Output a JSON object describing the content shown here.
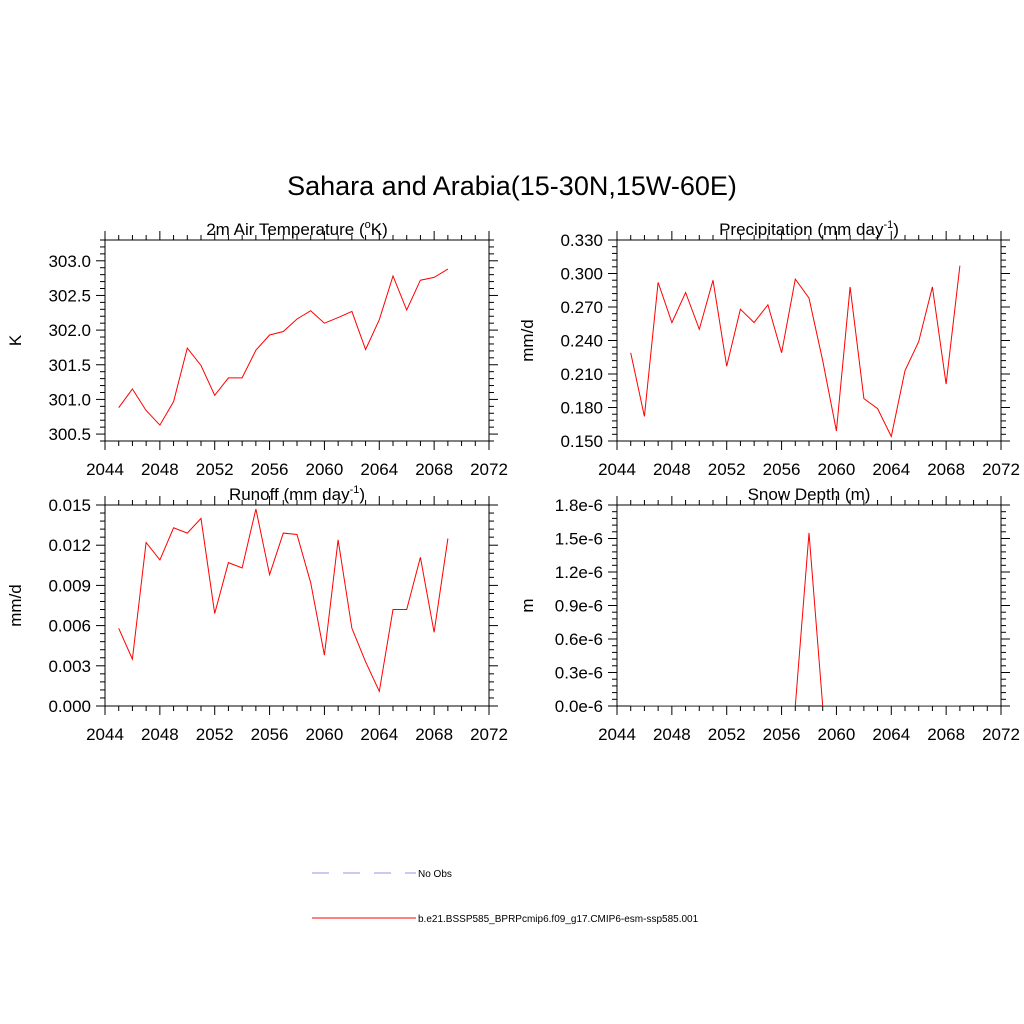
{
  "title": "Sahara and Arabia(15-30N,15W-60E)",
  "line_color": "#ff0000",
  "obs_color": "#aaaaee",
  "legend": {
    "obs_label": "No Obs",
    "model_label": "b.e21.BSSP585_BPRPcmip6.f09_g17.CMIP6-esm-ssp585.001"
  },
  "chart_data": [
    {
      "type": "line",
      "title_main": "2m Air Temperature (",
      "title_sup": "o",
      "title_end": "K)",
      "ylabel": "K",
      "xlim": [
        2044,
        2072
      ],
      "ylim": [
        300.4,
        303.3
      ],
      "xticks": [
        2044,
        2048,
        2052,
        2056,
        2060,
        2064,
        2068,
        2072
      ],
      "yticks": [
        300.5,
        301.0,
        301.5,
        302.0,
        302.5,
        303.0
      ],
      "ytick_labels": [
        "300.5",
        "301.0",
        "301.5",
        "302.0",
        "302.5",
        "303.0"
      ],
      "x": [
        2045,
        2046,
        2047,
        2048,
        2049,
        2050,
        2051,
        2052,
        2053,
        2054,
        2055,
        2056,
        2057,
        2058,
        2059,
        2060,
        2061,
        2062,
        2063,
        2064,
        2065,
        2066,
        2067,
        2068,
        2069
      ],
      "y": [
        300.88,
        301.15,
        300.84,
        300.63,
        300.97,
        301.74,
        301.49,
        301.06,
        301.31,
        301.31,
        301.71,
        301.93,
        301.98,
        302.16,
        302.28,
        302.1,
        302.18,
        302.27,
        301.72,
        302.15,
        302.78,
        302.29,
        302.72,
        302.76,
        302.88
      ]
    },
    {
      "type": "line",
      "title_main": "Precipitation (mm day",
      "title_sup": "-1",
      "title_end": ")",
      "ylabel": "mm/d",
      "xlim": [
        2044,
        2072
      ],
      "ylim": [
        0.15,
        0.33
      ],
      "xticks": [
        2044,
        2048,
        2052,
        2056,
        2060,
        2064,
        2068,
        2072
      ],
      "yticks": [
        0.15,
        0.18,
        0.21,
        0.24,
        0.27,
        0.3,
        0.33
      ],
      "ytick_labels": [
        "0.150",
        "0.180",
        "0.210",
        "0.240",
        "0.270",
        "0.300",
        "0.330"
      ],
      "x": [
        2045,
        2046,
        2047,
        2048,
        2049,
        2050,
        2051,
        2052,
        2053,
        2054,
        2055,
        2056,
        2057,
        2058,
        2059,
        2060,
        2061,
        2062,
        2063,
        2064,
        2065,
        2066,
        2067,
        2068,
        2069
      ],
      "y": [
        0.229,
        0.172,
        0.292,
        0.256,
        0.283,
        0.25,
        0.294,
        0.217,
        0.268,
        0.256,
        0.272,
        0.229,
        0.295,
        0.278,
        0.222,
        0.159,
        0.288,
        0.188,
        0.179,
        0.154,
        0.213,
        0.239,
        0.288,
        0.201,
        0.307
      ]
    },
    {
      "type": "line",
      "title_main": "Runoff (mm day",
      "title_sup": "-1",
      "title_end": ")",
      "ylabel": "mm/d",
      "xlim": [
        2044,
        2072
      ],
      "ylim": [
        0.0,
        0.015
      ],
      "xticks": [
        2044,
        2048,
        2052,
        2056,
        2060,
        2064,
        2068,
        2072
      ],
      "yticks": [
        0.0,
        0.003,
        0.006,
        0.009,
        0.012,
        0.015
      ],
      "ytick_labels": [
        "0.000",
        "0.003",
        "0.006",
        "0.009",
        "0.012",
        "0.015"
      ],
      "x": [
        2045,
        2046,
        2047,
        2048,
        2049,
        2050,
        2051,
        2052,
        2053,
        2054,
        2055,
        2056,
        2057,
        2058,
        2059,
        2060,
        2061,
        2062,
        2063,
        2064,
        2065,
        2066,
        2067,
        2068,
        2069
      ],
      "y": [
        0.0058,
        0.0035,
        0.0122,
        0.0109,
        0.0133,
        0.0129,
        0.014,
        0.0069,
        0.0107,
        0.0103,
        0.0147,
        0.0098,
        0.0129,
        0.0128,
        0.0092,
        0.0038,
        0.0124,
        0.0058,
        0.0033,
        0.0011,
        0.0072,
        0.0072,
        0.0111,
        0.0055,
        0.0125
      ]
    },
    {
      "type": "line",
      "title_main": "Snow Depth (m)",
      "title_sup": "",
      "title_end": "",
      "ylabel": "m",
      "xlim": [
        2044,
        2072
      ],
      "ylim": [
        0.0,
        1.8e-06
      ],
      "xticks": [
        2044,
        2048,
        2052,
        2056,
        2060,
        2064,
        2068,
        2072
      ],
      "yticks": [
        0.0,
        3e-07,
        6e-07,
        9e-07,
        1.2e-06,
        1.5e-06,
        1.8e-06
      ],
      "ytick_labels": [
        "0.0e-6",
        "0.3e-6",
        "0.6e-6",
        "0.9e-6",
        "1.2e-6",
        "1.5e-6",
        "1.8e-6"
      ],
      "x": [
        2045,
        2046,
        2047,
        2048,
        2049,
        2050,
        2051,
        2052,
        2053,
        2054,
        2055,
        2056,
        2057,
        2058,
        2059,
        2060,
        2061,
        2062,
        2063,
        2064,
        2065,
        2066,
        2067,
        2068,
        2069
      ],
      "y": [
        0,
        0,
        0,
        0,
        0,
        0,
        0,
        0,
        0,
        0,
        0,
        0,
        0,
        1.55e-06,
        0,
        0,
        0,
        0,
        0,
        0,
        0,
        0,
        0,
        0,
        0
      ]
    }
  ]
}
